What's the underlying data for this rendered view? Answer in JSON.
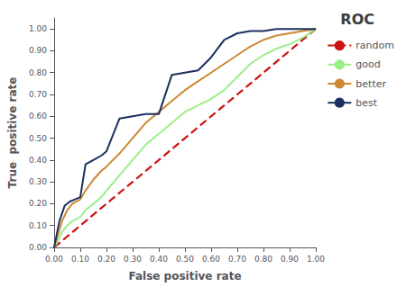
{
  "chart_data": {
    "type": "line",
    "title": "ROC",
    "xlabel": "False positive rate",
    "ylabel": "True  positive rate",
    "xlim": [
      0.0,
      1.0
    ],
    "ylim": [
      0.0,
      1.05
    ],
    "xticks": [
      {
        "value": 0.0,
        "label": "0.00"
      },
      {
        "value": 0.1,
        "label": "0.10"
      },
      {
        "value": 0.2,
        "label": "0.20"
      },
      {
        "value": 0.3,
        "label": "0.30"
      },
      {
        "value": 0.4,
        "label": "0.40"
      },
      {
        "value": 0.5,
        "label": "0.50"
      },
      {
        "value": 0.6,
        "label": "0.60"
      },
      {
        "value": 0.7,
        "label": "0.70"
      },
      {
        "value": 0.8,
        "label": "0.80"
      },
      {
        "value": 0.9,
        "label": "0.90"
      },
      {
        "value": 1.0,
        "label": "1.00"
      }
    ],
    "yticks": [
      {
        "value": 0.0,
        "label": "0.00"
      },
      {
        "value": 0.1,
        "label": "0.10"
      },
      {
        "value": 0.2,
        "label": "0.20"
      },
      {
        "value": 0.3,
        "label": "0.30"
      },
      {
        "value": 0.4,
        "label": "0.40"
      },
      {
        "value": 0.5,
        "label": "0.50"
      },
      {
        "value": 0.6,
        "label": "0.60"
      },
      {
        "value": 0.7,
        "label": "0.70"
      },
      {
        "value": 0.8,
        "label": "0.80"
      },
      {
        "value": 0.9,
        "label": "0.90"
      },
      {
        "value": 1.0,
        "label": "1.00"
      }
    ],
    "grid": false,
    "legend": "right",
    "series": [
      {
        "name": "random",
        "color": "#cc1111",
        "line_style": "dashed",
        "x": [
          0,
          1
        ],
        "values": [
          0,
          1
        ]
      },
      {
        "name": "good",
        "color": "#99ee88",
        "line_style": "solid",
        "x": [
          0.0,
          0.01,
          0.03,
          0.05,
          0.07,
          0.1,
          0.12,
          0.15,
          0.18,
          0.2,
          0.25,
          0.3,
          0.35,
          0.4,
          0.45,
          0.5,
          0.55,
          0.6,
          0.65,
          0.7,
          0.75,
          0.8,
          0.85,
          0.9,
          0.95,
          1.0
        ],
        "values": [
          0.0,
          0.02,
          0.07,
          0.1,
          0.12,
          0.14,
          0.17,
          0.2,
          0.23,
          0.26,
          0.33,
          0.4,
          0.47,
          0.52,
          0.57,
          0.62,
          0.65,
          0.68,
          0.72,
          0.78,
          0.84,
          0.88,
          0.91,
          0.93,
          0.96,
          1.0
        ]
      },
      {
        "name": "better",
        "color": "#cc8833",
        "line_style": "solid",
        "x": [
          0.0,
          0.01,
          0.03,
          0.05,
          0.07,
          0.1,
          0.12,
          0.15,
          0.18,
          0.2,
          0.25,
          0.3,
          0.35,
          0.4,
          0.45,
          0.5,
          0.55,
          0.6,
          0.65,
          0.7,
          0.75,
          0.8,
          0.85,
          0.9,
          0.95,
          1.0
        ],
        "values": [
          0.0,
          0.04,
          0.12,
          0.17,
          0.2,
          0.22,
          0.26,
          0.31,
          0.35,
          0.37,
          0.43,
          0.5,
          0.57,
          0.62,
          0.67,
          0.72,
          0.76,
          0.8,
          0.84,
          0.88,
          0.92,
          0.95,
          0.97,
          0.98,
          0.99,
          1.0
        ]
      },
      {
        "name": "best",
        "color": "#1a3060",
        "line_style": "solid",
        "x": [
          0.0,
          0.01,
          0.02,
          0.04,
          0.06,
          0.08,
          0.1,
          0.12,
          0.15,
          0.18,
          0.2,
          0.25,
          0.3,
          0.35,
          0.4,
          0.45,
          0.5,
          0.55,
          0.6,
          0.65,
          0.7,
          0.75,
          0.8,
          0.85,
          0.9,
          0.95,
          1.0
        ],
        "values": [
          0.0,
          0.06,
          0.12,
          0.19,
          0.21,
          0.22,
          0.23,
          0.38,
          0.4,
          0.42,
          0.44,
          0.59,
          0.6,
          0.61,
          0.61,
          0.79,
          0.8,
          0.81,
          0.87,
          0.95,
          0.98,
          0.99,
          0.99,
          1.0,
          1.0,
          1.0,
          1.0
        ]
      }
    ]
  }
}
